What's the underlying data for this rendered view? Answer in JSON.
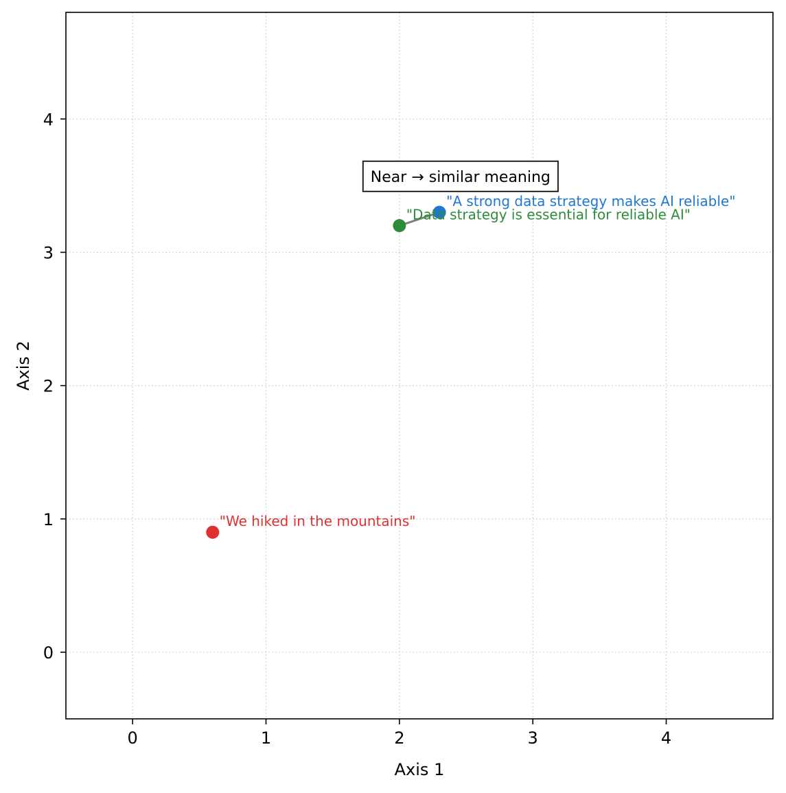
{
  "chart_data": {
    "type": "scatter",
    "title": "",
    "xlabel": "Axis 1",
    "ylabel": "Axis 2",
    "xlim": [
      -0.5,
      4.8
    ],
    "ylim": [
      -0.5,
      4.8
    ],
    "xticks": [
      0,
      1,
      2,
      3,
      4
    ],
    "yticks": [
      0,
      1,
      2,
      3,
      4
    ],
    "grid": true,
    "points": [
      {
        "label": "\"A strong data strategy makes AI reliable\"",
        "x": 2.3,
        "y": 3.3,
        "color": "#1f77d0"
      },
      {
        "label": "\"Data strategy is essential for reliable AI\"",
        "x": 2.0,
        "y": 3.2,
        "color": "#2e8b3a"
      },
      {
        "label": "\"We hiked in the mountains\"",
        "x": 0.6,
        "y": 0.9,
        "color": "#e03131"
      }
    ],
    "connector": {
      "from": 0,
      "to": 1,
      "color": "#808080"
    },
    "annotation": {
      "text": "Near → similar meaning",
      "x": 1.3,
      "y": 3.57
    }
  }
}
